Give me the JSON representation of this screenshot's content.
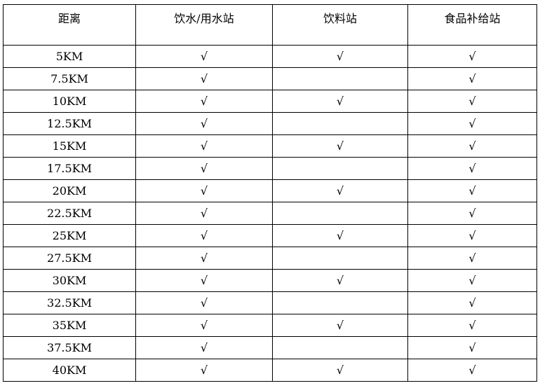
{
  "table": {
    "headers": [
      "距离",
      "饮水/用水站",
      "饮料站",
      "食品补给站"
    ],
    "check_mark": "√",
    "rows": [
      {
        "distance": "5KM",
        "water": true,
        "drink": true,
        "food": true
      },
      {
        "distance": "7.5KM",
        "water": true,
        "drink": false,
        "food": true
      },
      {
        "distance": "10KM",
        "water": true,
        "drink": true,
        "food": true
      },
      {
        "distance": "12.5KM",
        "water": true,
        "drink": false,
        "food": true
      },
      {
        "distance": "15KM",
        "water": true,
        "drink": true,
        "food": true
      },
      {
        "distance": "17.5KM",
        "water": true,
        "drink": false,
        "food": true
      },
      {
        "distance": "20KM",
        "water": true,
        "drink": true,
        "food": true
      },
      {
        "distance": "22.5KM",
        "water": true,
        "drink": false,
        "food": true
      },
      {
        "distance": "25KM",
        "water": true,
        "drink": true,
        "food": true
      },
      {
        "distance": "27.5KM",
        "water": true,
        "drink": false,
        "food": true
      },
      {
        "distance": "30KM",
        "water": true,
        "drink": true,
        "food": true
      },
      {
        "distance": "32.5KM",
        "water": true,
        "drink": false,
        "food": true
      },
      {
        "distance": "35KM",
        "water": true,
        "drink": true,
        "food": true
      },
      {
        "distance": "37.5KM",
        "water": true,
        "drink": false,
        "food": true
      },
      {
        "distance": "40KM",
        "water": true,
        "drink": true,
        "food": true
      }
    ]
  }
}
